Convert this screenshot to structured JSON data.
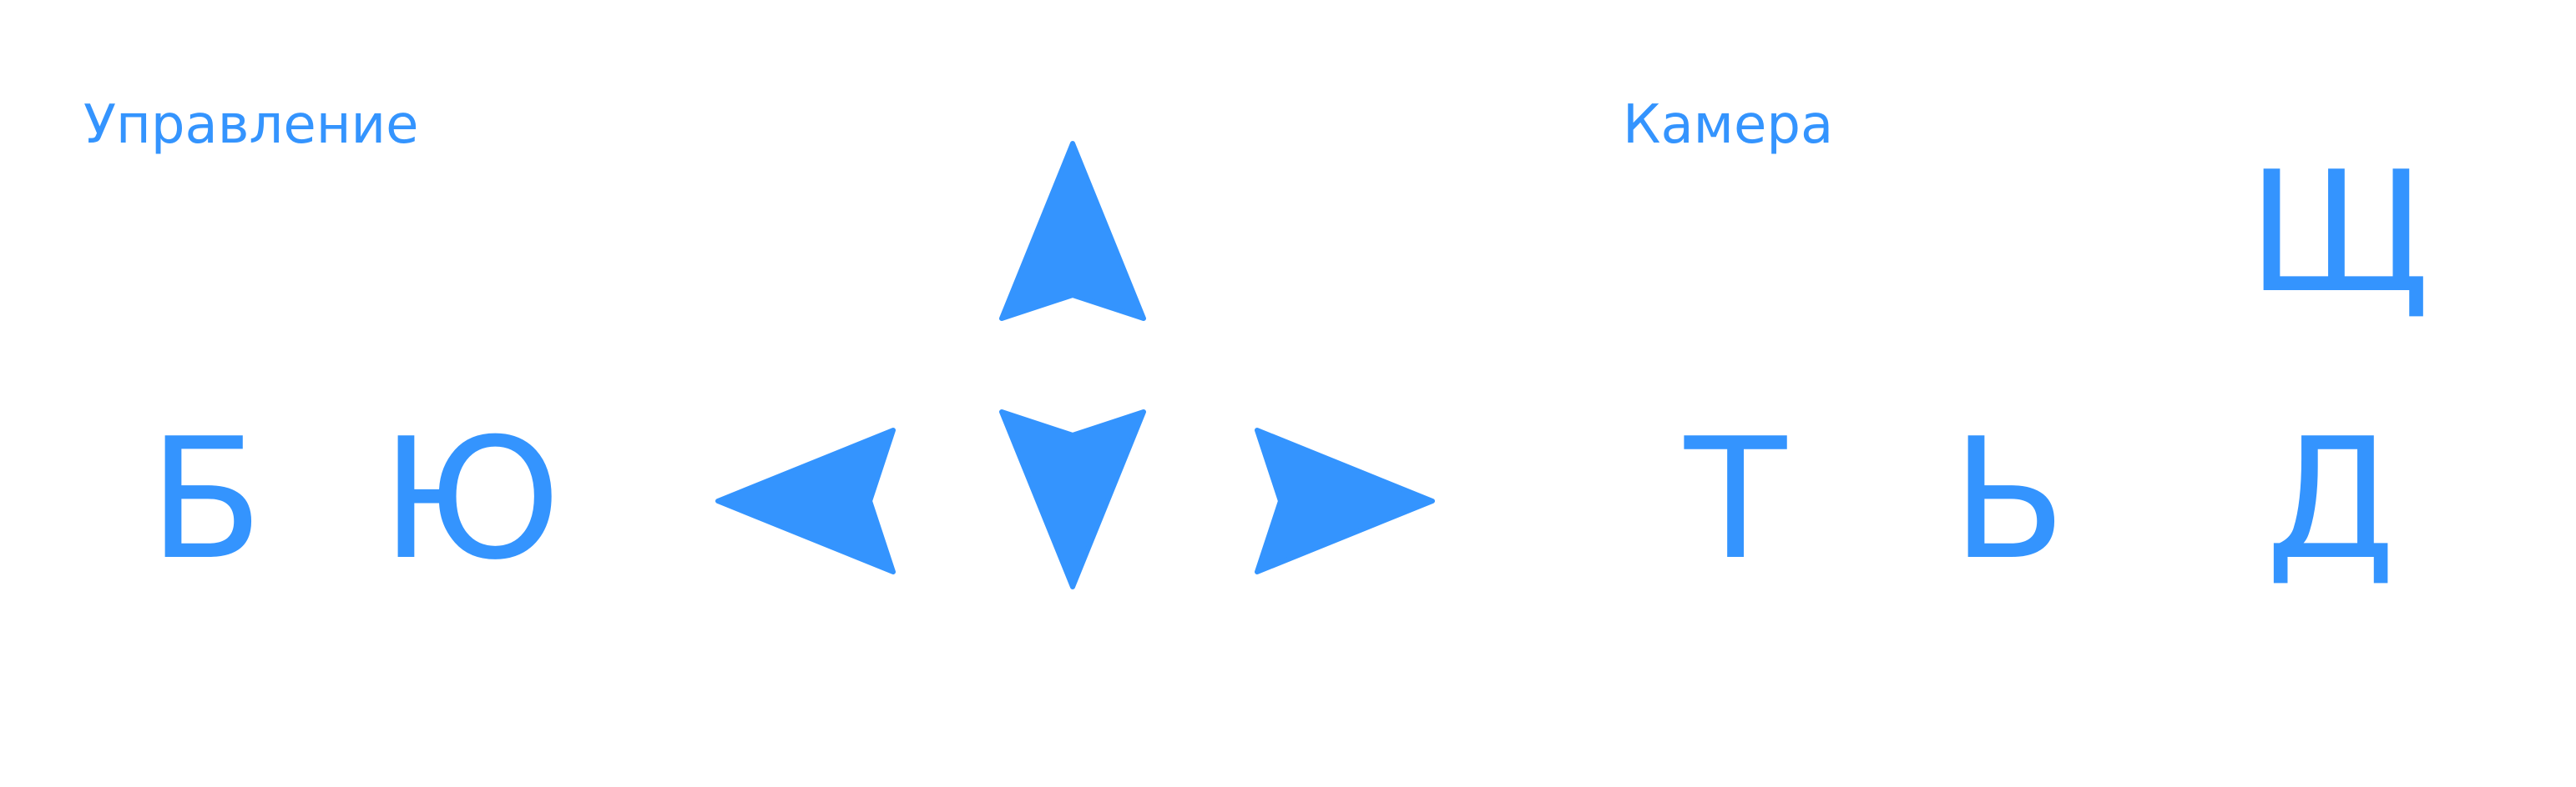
{
  "sections": {
    "control": {
      "title": "Управление"
    },
    "camera": {
      "title": "Камера"
    }
  },
  "keys": {
    "control_left": "Б",
    "control_right": "Ю",
    "camera_t": "Т",
    "camera_soft": "Ь",
    "camera_d": "Д",
    "camera_shch": "Щ"
  },
  "icons": {
    "up": "arrow-up-icon",
    "down": "arrow-down-icon",
    "left": "arrow-left-icon",
    "right": "arrow-right-icon"
  },
  "colors": {
    "accent": "#3494fe",
    "background": "#ffffff"
  }
}
